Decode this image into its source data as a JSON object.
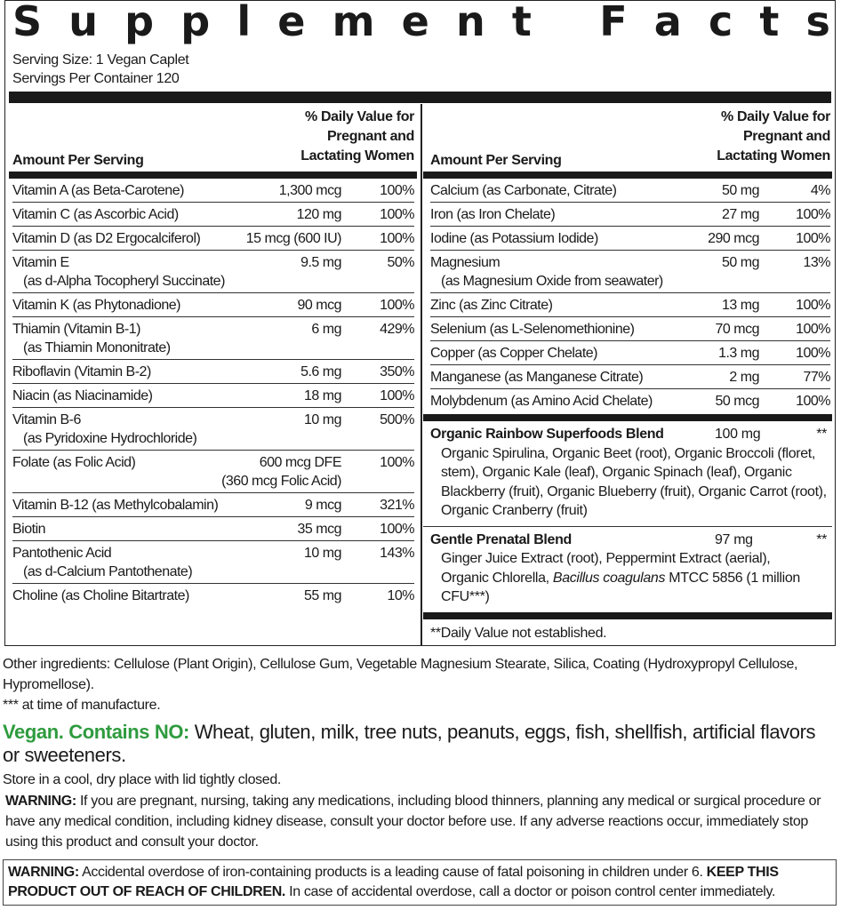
{
  "title": "Supplement Facts",
  "serving_size": "Serving Size: 1 Vegan Caplet",
  "servings_per_container": "Servings Per Container 120",
  "header": {
    "amount_per_serving": "Amount Per Serving",
    "dv_line1": "% Daily Value for",
    "dv_line2": "Pregnant and",
    "dv_line3": "Lactating Women"
  },
  "left_rows": [
    {
      "name": "Vitamin A (as Beta-Carotene)",
      "amount": "1,300 mcg",
      "dv": "100%"
    },
    {
      "name": "Vitamin C (as Ascorbic Acid)",
      "amount": "120 mg",
      "dv": "100%"
    },
    {
      "name": "Vitamin D (as D2 Ergocalciferol)",
      "amount": "15 mcg (600 IU)",
      "dv": "100%"
    },
    {
      "name": "Vitamin E",
      "sub": "(as d-Alpha Tocopheryl Succinate)",
      "amount": "9.5 mg",
      "dv": "50%"
    },
    {
      "name": "Vitamin K (as Phytonadione)",
      "amount": "90 mcg",
      "dv": "100%"
    },
    {
      "name": "Thiamin (Vitamin B-1)",
      "sub": "(as Thiamin Mononitrate)",
      "amount": "6 mg",
      "dv": "429%"
    },
    {
      "name": "Riboflavin (Vitamin B-2)",
      "amount": "5.6 mg",
      "dv": "350%"
    },
    {
      "name": "Niacin (as Niacinamide)",
      "amount": "18 mg",
      "dv": "100%"
    },
    {
      "name": "Vitamin B-6",
      "sub": "(as Pyridoxine Hydrochloride)",
      "amount": "10 mg",
      "dv": "500%"
    },
    {
      "name": "Folate (as Folic Acid)",
      "amount": "600 mcg DFE",
      "amount2": "(360 mcg Folic Acid)",
      "dv": "100%"
    },
    {
      "name": "Vitamin B-12 (as Methylcobalamin)",
      "amount": "9 mcg",
      "dv": "321%"
    },
    {
      "name": "Biotin",
      "amount": "35 mcg",
      "dv": "100%"
    },
    {
      "name": "Pantothenic Acid",
      "sub": "(as d-Calcium Pantothenate)",
      "amount": "10 mg",
      "dv": "143%"
    },
    {
      "name": "Choline (as Choline Bitartrate)",
      "amount": "55 mg",
      "dv": "10%"
    }
  ],
  "right_rows": [
    {
      "name": "Calcium (as Carbonate, Citrate)",
      "amount": "50 mg",
      "dv": "4%"
    },
    {
      "name": "Iron (as Iron Chelate)",
      "amount": "27 mg",
      "dv": "100%"
    },
    {
      "name": "Iodine (as Potassium Iodide)",
      "amount": "290 mcg",
      "dv": "100%"
    },
    {
      "name": "Magnesium",
      "sub": "(as Magnesium Oxide from seawater)",
      "amount": "50 mg",
      "dv": "13%"
    },
    {
      "name": "Zinc (as Zinc Citrate)",
      "amount": "13 mg",
      "dv": "100%"
    },
    {
      "name": "Selenium (as L-Selenomethionine)",
      "amount": "70 mcg",
      "dv": "100%"
    },
    {
      "name": "Copper (as Copper Chelate)",
      "amount": "1.3 mg",
      "dv": "100%"
    },
    {
      "name": "Manganese (as Manganese Citrate)",
      "amount": "2 mg",
      "dv": "77%"
    },
    {
      "name": "Molybdenum (as Amino Acid Chelate)",
      "amount": "50 mcg",
      "dv": "100%"
    }
  ],
  "blends": [
    {
      "name": "Organic Rainbow Superfoods Blend",
      "amount": "100 mg",
      "dv": "**",
      "desc": "Organic Spirulina, Organic Beet (root), Organic Broccoli (floret, stem), Organic Kale (leaf), Organic Spinach (leaf), Organic Blackberry (fruit), Organic Blueberry (fruit), Organic Carrot (root), Organic Cranberry (fruit)"
    },
    {
      "name": "Gentle Prenatal Blend",
      "amount": "97 mg",
      "dv": "**",
      "desc": "Ginger Juice Extract (root), Peppermint Extract (aerial), Organic Chlorella,",
      "desc_italic": "Bacillus coagulans",
      "desc_end": "MTCC 5856 (1 million CFU***)"
    }
  ],
  "dv_note": "**Daily Value not established.",
  "other_ingredients": "Other ingredients: Cellulose (Plant Origin), Cellulose Gum, Vegetable Magnesium Stearate, Silica, Coating (Hydroxypropyl Cellulose, Hypromellose).",
  "manufacture_note": "*** at time of manufacture.",
  "vegan": {
    "label": "Vegan. Contains NO:",
    "text": " Wheat, gluten, milk, tree nuts, peanuts, eggs, fish, shellfish, artificial flavors or sweeteners.",
    "color": "#2e9b3e"
  },
  "storage": "Store in a cool, dry place with lid tightly closed.",
  "warning1": {
    "label": "WARNING:",
    "text": " If you are pregnant, nursing, taking any medications, including blood thinners, planning any medical or surgical procedure or have any medical condition, including kidney disease, consult your doctor before use. If any adverse reactions occur, immediately stop using this product and consult your doctor."
  },
  "warning2": {
    "label": "WARNING:",
    "text1": " Accidental overdose of iron-containing products is a leading cause of fatal poisoning in children under 6. ",
    "bold": "KEEP THIS PRODUCT OUT OF REACH OF CHILDREN.",
    "text2": " In case of accidental overdose, call a doctor or poison control center immediately."
  }
}
